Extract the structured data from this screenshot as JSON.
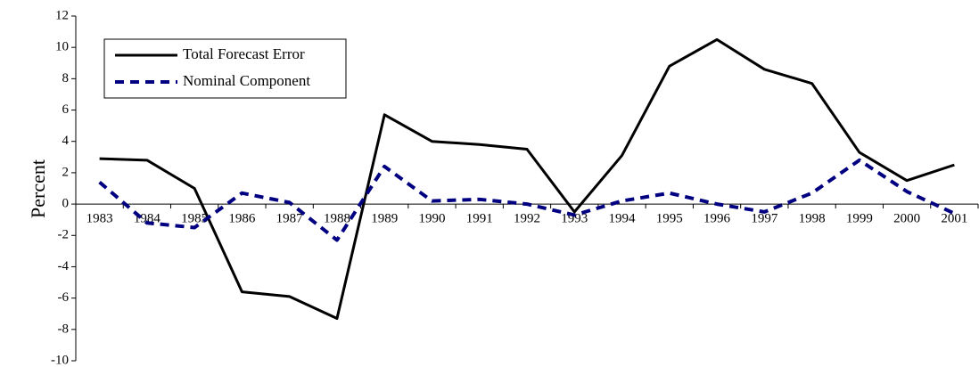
{
  "chart_data": {
    "type": "line",
    "y_label": "Percent",
    "categories": [
      "1983",
      "1984",
      "1985",
      "1986",
      "1987",
      "1988",
      "1989",
      "1990",
      "1991",
      "1992",
      "1993",
      "1994",
      "1995",
      "1996",
      "1997",
      "1998",
      "1999",
      "2000",
      "2001"
    ],
    "series": [
      {
        "name": "Total Forecast Error",
        "color": "#000000",
        "style": "solid",
        "values": [
          2.9,
          2.8,
          1.0,
          -5.6,
          -5.9,
          -7.3,
          5.7,
          4.0,
          3.8,
          3.5,
          -0.5,
          3.1,
          8.8,
          10.5,
          8.6,
          7.7,
          3.3,
          1.5,
          2.5
        ]
      },
      {
        "name": "Nominal Component",
        "color": "#000080",
        "style": "dashed",
        "values": [
          1.4,
          -1.2,
          -1.5,
          0.7,
          0.1,
          -2.3,
          2.4,
          0.2,
          0.3,
          0.0,
          -0.7,
          0.2,
          0.7,
          0.0,
          -0.5,
          0.7,
          2.8,
          0.8,
          -0.6
        ]
      }
    ],
    "ylim": [
      -10,
      12
    ],
    "yticks": [
      -10,
      -8,
      -6,
      -4,
      -2,
      0,
      2,
      4,
      6,
      8,
      10,
      12
    ],
    "legend": "upper left"
  }
}
